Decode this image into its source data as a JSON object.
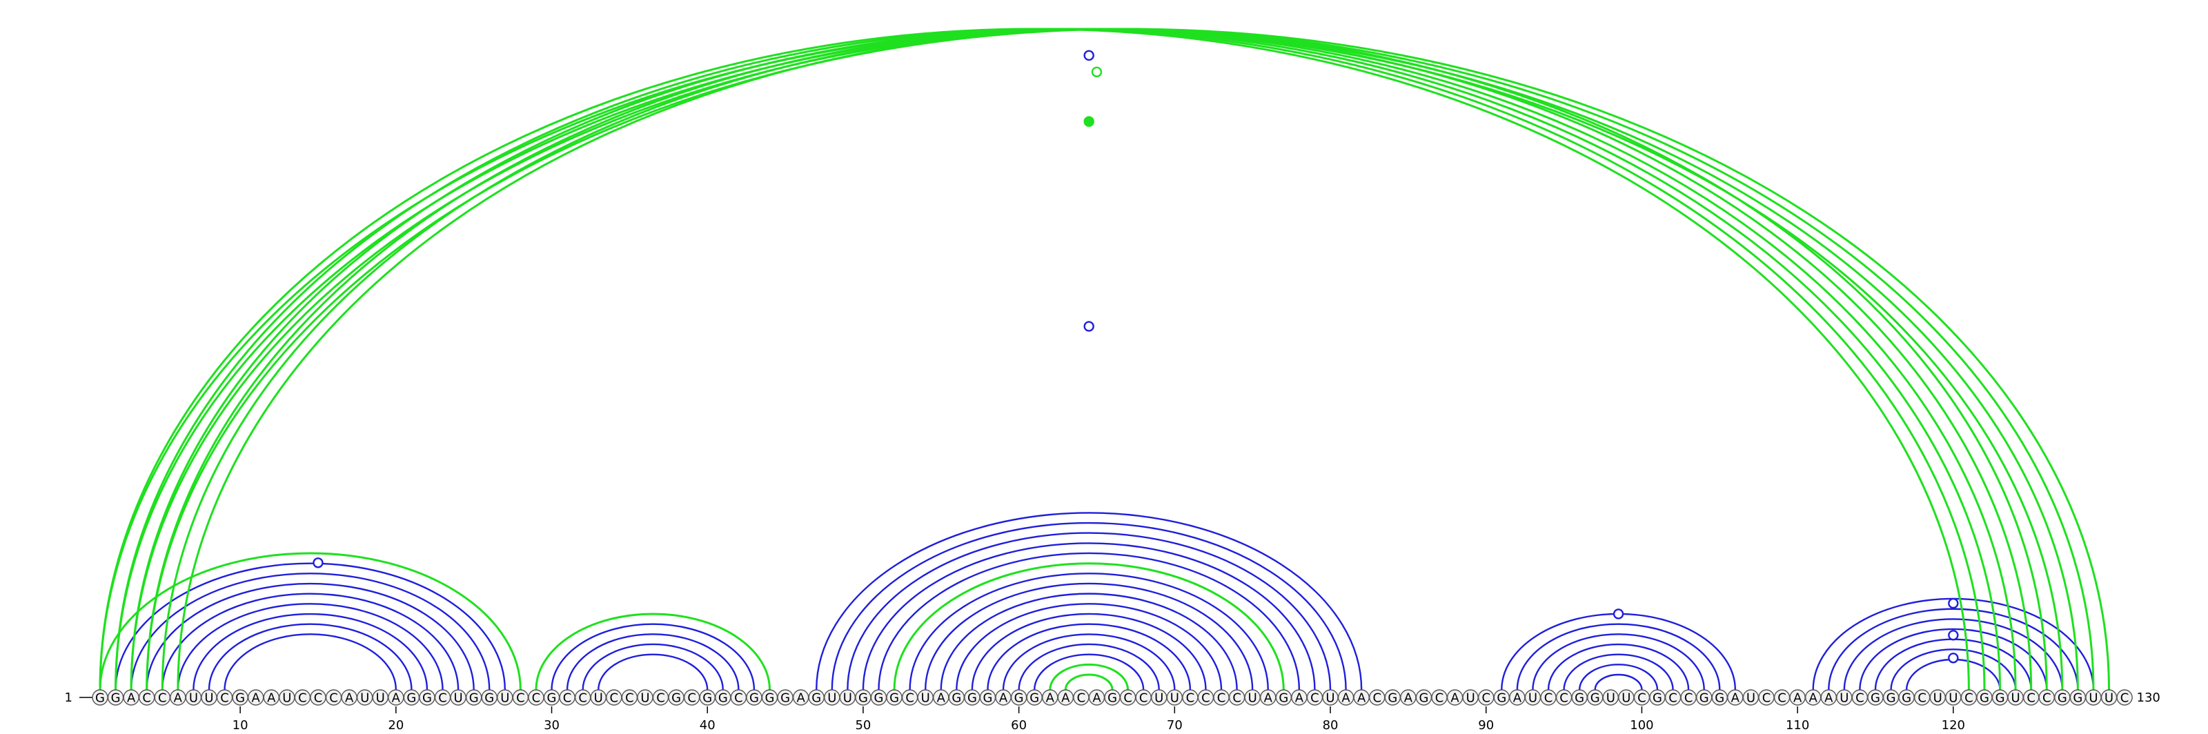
{
  "sequence": "GGACCAUUCGAAUCCCAUUAGGCUGGUCCGCCUCCUCGCGGCGGGAGUUGGGCUAGGGAGGAACAGCCUUCCCCUAGACUAACGAGCAUCGAUCCGGUUCGCCGGAUCCAAAUCGGGCUUCGGUCCGGUUC",
  "start_label": "1",
  "end_label": "130",
  "ticks": [
    "10",
    "20",
    "30",
    "40",
    "50",
    "60",
    "70",
    "80",
    "90",
    "100",
    "110",
    "120"
  ],
  "colors": {
    "blue": "#1f1fdc",
    "green": "#1fe01f",
    "circle_stroke": "#555555",
    "circle_fill": "#f2f2f2",
    "text": "#000000"
  },
  "chart_data": {
    "type": "arc-diagram",
    "length": 130,
    "blue_pairs": [
      [
        2,
        27
      ],
      [
        3,
        26
      ],
      [
        4,
        25
      ],
      [
        5,
        24
      ],
      [
        6,
        23
      ],
      [
        7,
        22
      ],
      [
        8,
        21
      ],
      [
        9,
        20
      ],
      [
        30,
        43
      ],
      [
        31,
        42
      ],
      [
        32,
        41
      ],
      [
        33,
        40
      ],
      [
        47,
        82
      ],
      [
        48,
        81
      ],
      [
        49,
        80
      ],
      [
        50,
        79
      ],
      [
        51,
        78
      ],
      [
        53,
        76
      ],
      [
        54,
        75
      ],
      [
        55,
        74
      ],
      [
        56,
        73
      ],
      [
        57,
        72
      ],
      [
        58,
        71
      ],
      [
        59,
        70
      ],
      [
        60,
        69
      ],
      [
        61,
        68
      ],
      [
        91,
        106
      ],
      [
        92,
        105
      ],
      [
        93,
        104
      ],
      [
        94,
        103
      ],
      [
        95,
        102
      ],
      [
        96,
        101
      ],
      [
        97,
        100
      ],
      [
        111,
        129
      ],
      [
        112,
        128
      ],
      [
        113,
        127
      ],
      [
        114,
        126
      ],
      [
        115,
        125
      ],
      [
        116,
        124
      ],
      [
        117,
        123
      ]
    ],
    "green_pairs": [
      [
        1,
        28
      ],
      [
        29,
        44
      ],
      [
        52,
        77
      ],
      [
        62,
        67
      ],
      [
        63,
        66
      ],
      [
        1,
        121
      ],
      [
        2,
        122
      ],
      [
        3,
        123
      ],
      [
        4,
        124
      ],
      [
        5,
        125
      ],
      [
        6,
        126
      ],
      [
        1,
        127
      ],
      [
        2,
        128
      ],
      [
        3,
        129
      ],
      [
        4,
        130
      ]
    ],
    "markers": [
      {
        "pos": 65.0,
        "level": 0.935,
        "color": "green",
        "filled": false
      },
      {
        "pos": 15.0,
        "level": 0.93,
        "color": "blue",
        "filled": false
      },
      {
        "pos": 64.5,
        "level": 0.96,
        "color": "blue",
        "filled": false
      },
      {
        "pos": 64.5,
        "level": 0.86,
        "color": "green",
        "filled": true
      },
      {
        "pos": 64.5,
        "level": 0.55,
        "color": "blue",
        "filled": false
      },
      {
        "pos": 98.5,
        "level": 1.0,
        "color": "blue",
        "filled": false
      },
      {
        "pos": 120.0,
        "level": 0.95,
        "color": "blue",
        "filled": false
      },
      {
        "pos": 120.0,
        "level": 0.6,
        "color": "blue",
        "filled": false
      },
      {
        "pos": 120.0,
        "level": 0.35,
        "color": "blue",
        "filled": false
      }
    ]
  }
}
